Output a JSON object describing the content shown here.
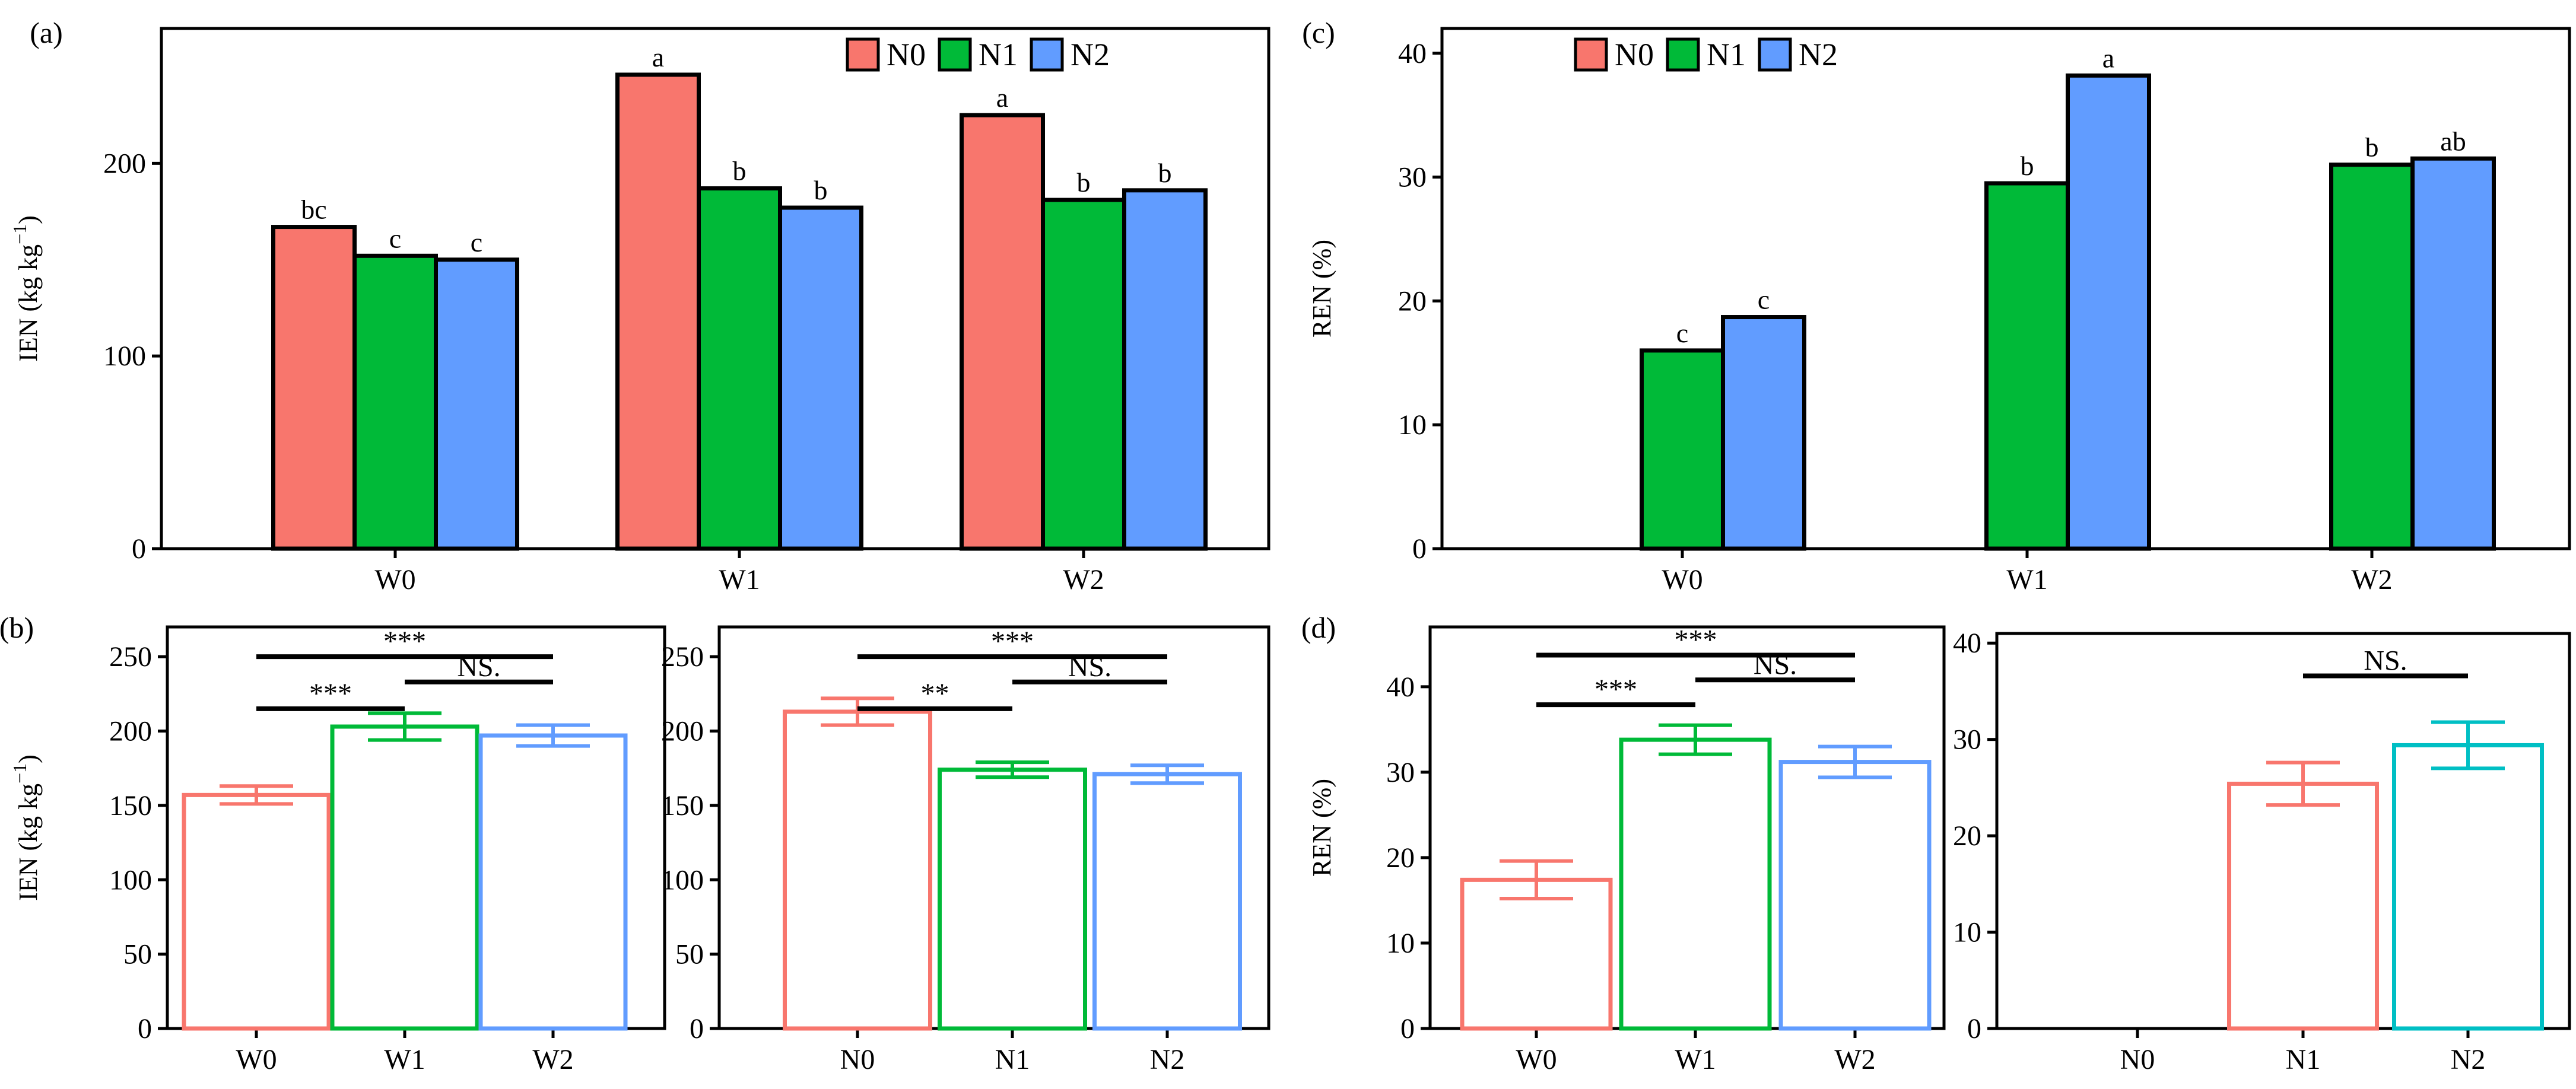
{
  "figure": {
    "colors": {
      "N0": "#F8766D",
      "N1": "#00BA38",
      "N2": "#619CFF",
      "N2_open": "#00BFC4"
    }
  },
  "chart_data": [
    {
      "id": "a",
      "type": "bar",
      "panel_label": "(a)",
      "ylabel": "IEN (kg  kg",
      "ylabel_sup": "−1",
      "ylabel_close": ")",
      "ylim": [
        0,
        270
      ],
      "yticks": [
        0,
        100,
        200
      ],
      "categories": [
        "W0",
        "W1",
        "W2"
      ],
      "legend": {
        "position": "top-right",
        "entries": [
          "N0",
          "N1",
          "N2"
        ]
      },
      "series": [
        {
          "name": "N0",
          "values": [
            167,
            246,
            225
          ],
          "letters": [
            "bc",
            "a",
            "a"
          ]
        },
        {
          "name": "N1",
          "values": [
            152,
            187,
            181
          ],
          "letters": [
            "c",
            "b",
            "b"
          ]
        },
        {
          "name": "N2",
          "values": [
            150,
            177,
            186
          ],
          "letters": [
            "c",
            "b",
            "b"
          ]
        }
      ]
    },
    {
      "id": "c",
      "type": "bar",
      "panel_label": "(c)",
      "ylabel": "REN (%)",
      "ylim": [
        0,
        42
      ],
      "yticks": [
        0,
        10,
        20,
        30,
        40
      ],
      "categories": [
        "W0",
        "W1",
        "W2"
      ],
      "legend": {
        "position": "top-left",
        "entries": [
          "N0",
          "N1",
          "N2"
        ]
      },
      "series": [
        {
          "name": "N0",
          "values": [
            null,
            null,
            null
          ],
          "letters": [
            "",
            "",
            ""
          ]
        },
        {
          "name": "N1",
          "values": [
            16,
            29.5,
            31
          ],
          "letters": [
            "c",
            "b",
            "b"
          ]
        },
        {
          "name": "N2",
          "values": [
            18.7,
            38.2,
            31.5
          ],
          "letters": [
            "c",
            "a",
            "ab"
          ]
        }
      ]
    },
    {
      "id": "b1",
      "type": "bar",
      "panel_label": "(b)",
      "ylabel": "IEN (kg  kg",
      "ylabel_sup": "−1",
      "ylabel_close": ")",
      "ylim": [
        0,
        270
      ],
      "yticks": [
        0,
        50,
        100,
        150,
        200,
        250
      ],
      "categories": [
        "W0",
        "W1",
        "W2"
      ],
      "colorkeys": [
        "N0",
        "N1",
        "N2"
      ],
      "values": [
        157,
        203,
        197
      ],
      "errors": [
        6,
        9,
        7
      ],
      "significance": [
        {
          "from": 0,
          "to": 2,
          "y": 250,
          "label": "***"
        },
        {
          "from": 1,
          "to": 2,
          "y": 233,
          "label": "NS."
        },
        {
          "from": 0,
          "to": 1,
          "y": 215,
          "label": "***"
        }
      ]
    },
    {
      "id": "b2",
      "type": "bar",
      "ylim": [
        0,
        270
      ],
      "yticks": [
        0,
        50,
        100,
        150,
        200,
        250
      ],
      "categories": [
        "N0",
        "N1",
        "N2"
      ],
      "colorkeys": [
        "N0",
        "N1",
        "N2"
      ],
      "values": [
        213,
        174,
        171
      ],
      "errors": [
        9,
        5,
        6
      ],
      "significance": [
        {
          "from": 0,
          "to": 2,
          "y": 250,
          "label": "***"
        },
        {
          "from": 1,
          "to": 2,
          "y": 233,
          "label": "NS."
        },
        {
          "from": 0,
          "to": 1,
          "y": 215,
          "label": "**"
        }
      ]
    },
    {
      "id": "d1",
      "type": "bar",
      "panel_label": "(d)",
      "ylabel": "REN (%)",
      "ylim": [
        0,
        47
      ],
      "yticks": [
        0,
        10,
        20,
        30,
        40
      ],
      "categories": [
        "W0",
        "W1",
        "W2"
      ],
      "colorkeys": [
        "N0",
        "N1",
        "N2"
      ],
      "values": [
        17.4,
        33.8,
        31.2
      ],
      "errors": [
        2.2,
        1.7,
        1.8
      ],
      "significance": [
        {
          "from": 0,
          "to": 2,
          "y": 43.7,
          "label": "***"
        },
        {
          "from": 1,
          "to": 2,
          "y": 40.8,
          "label": "NS."
        },
        {
          "from": 0,
          "to": 1,
          "y": 37.9,
          "label": "***"
        }
      ]
    },
    {
      "id": "d2",
      "type": "bar",
      "ylim": [
        0,
        41
      ],
      "yticks": [
        0,
        10,
        20,
        30,
        40
      ],
      "categories": [
        "N0",
        "N1",
        "N2"
      ],
      "colorkeys": [
        "N0",
        "N0",
        "N2_open"
      ],
      "values": [
        null,
        25.4,
        29.4
      ],
      "errors": [
        null,
        2.2,
        2.4
      ],
      "significance": [
        {
          "from": 1,
          "to": 2,
          "y": 36.6,
          "label": "NS."
        }
      ]
    }
  ]
}
